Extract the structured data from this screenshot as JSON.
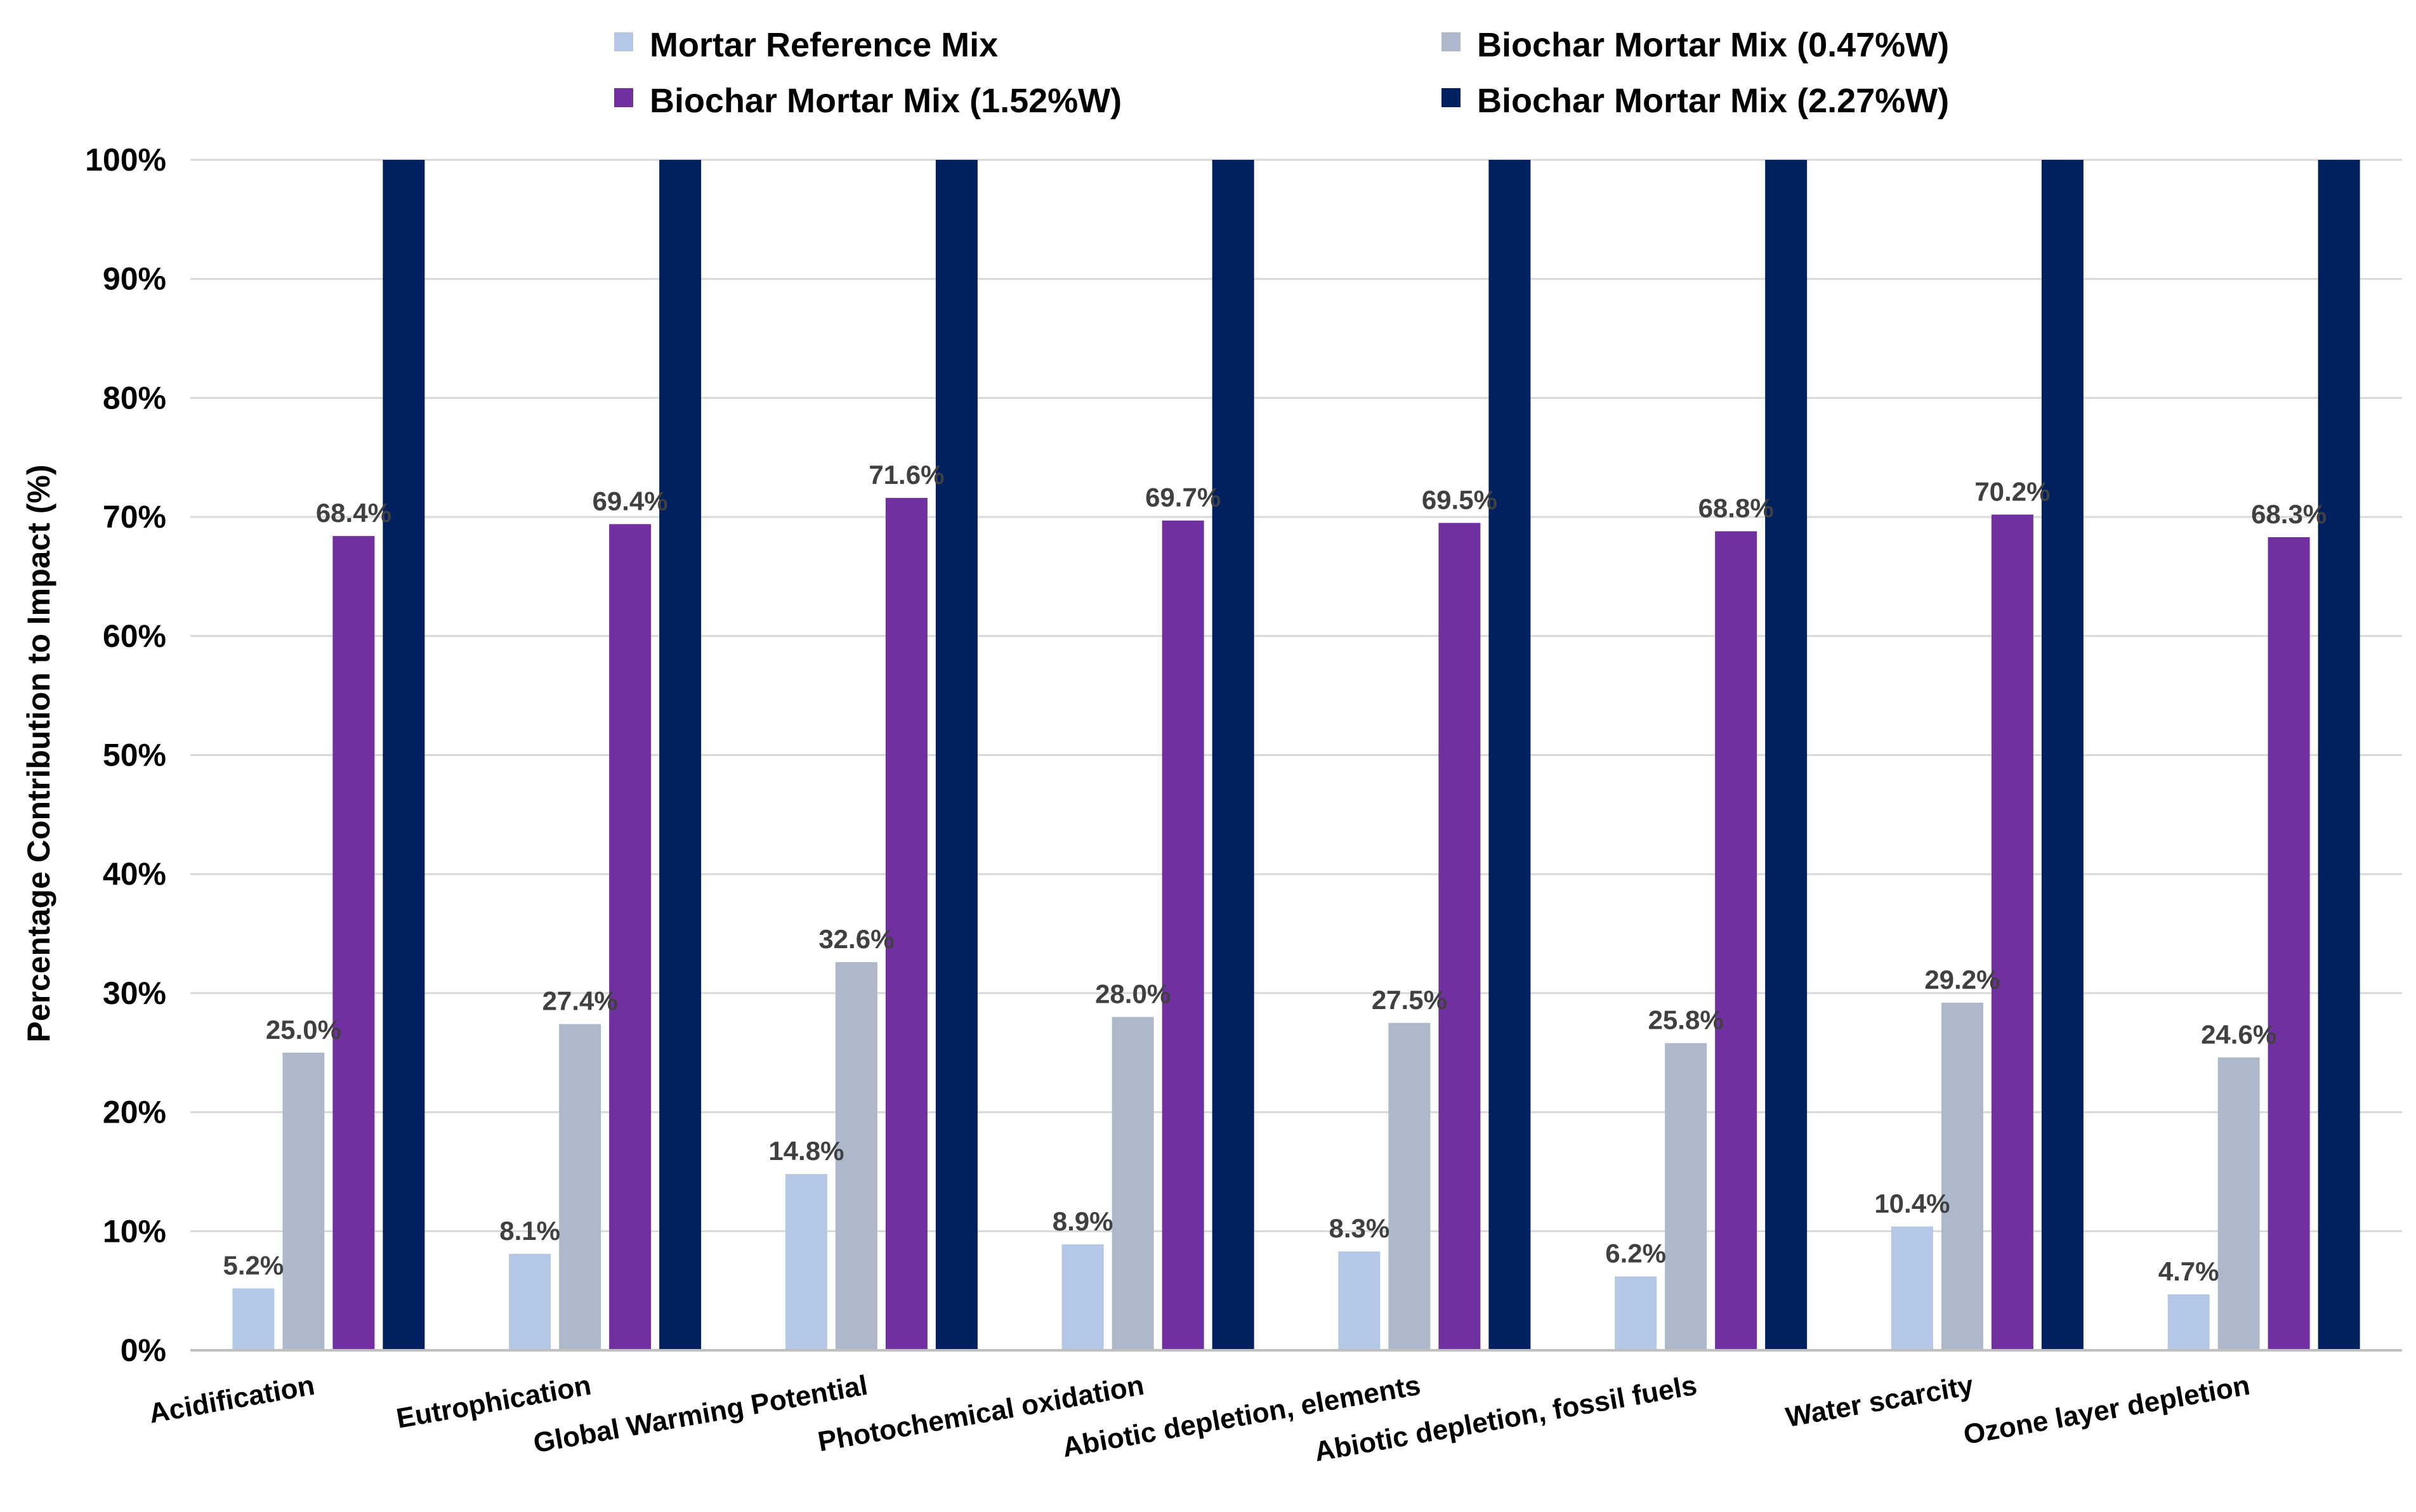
{
  "chart_data": {
    "type": "bar",
    "title": "",
    "xlabel": "",
    "ylabel": "Percentage Contribution to Impact (%)",
    "ylim": [
      0,
      100
    ],
    "yticks": [
      "0%",
      "10%",
      "20%",
      "30%",
      "40%",
      "50%",
      "60%",
      "70%",
      "80%",
      "90%",
      "100%"
    ],
    "grid": true,
    "legend_position": "top",
    "categories": [
      "Acidification",
      "Eutrophication",
      "Global Warming Potential",
      "Photochemical oxidation",
      "Abiotic depletion, elements",
      "Abiotic depletion, fossil fuels",
      "Water scarcity",
      "Ozone layer depletion"
    ],
    "series": [
      {
        "name": "Mortar Reference Mix",
        "color": "#b4c7e7",
        "values": [
          5.2,
          8.1,
          14.8,
          8.9,
          8.3,
          6.2,
          10.4,
          4.7
        ],
        "labels": [
          "5.2%",
          "8.1%",
          "14.8%",
          "8.9%",
          "8.3%",
          "6.2%",
          "10.4%",
          "4.7%"
        ]
      },
      {
        "name": "Biochar Mortar Mix (0.47%W)",
        "color": "#adb9ca",
        "values": [
          25.0,
          27.4,
          32.6,
          28.0,
          27.5,
          25.8,
          29.2,
          24.6
        ],
        "labels": [
          "25.0%",
          "27.4%",
          "32.6%",
          "28.0%",
          "27.5%",
          "25.8%",
          "29.2%",
          "24.6%"
        ]
      },
      {
        "name": "Biochar Mortar Mix (1.52%W)",
        "color": "#7030a0",
        "values": [
          68.4,
          69.4,
          71.6,
          69.7,
          69.5,
          68.8,
          70.2,
          68.3
        ],
        "labels": [
          "68.4%",
          "69.4%",
          "71.6%",
          "69.7%",
          "69.5%",
          "68.8%",
          "70.2%",
          "68.3%"
        ]
      },
      {
        "name": "Biochar Mortar Mix (2.27%W)",
        "color": "#002060",
        "values": [
          100,
          100,
          100,
          100,
          100,
          100,
          100,
          100
        ],
        "labels": null
      }
    ]
  }
}
